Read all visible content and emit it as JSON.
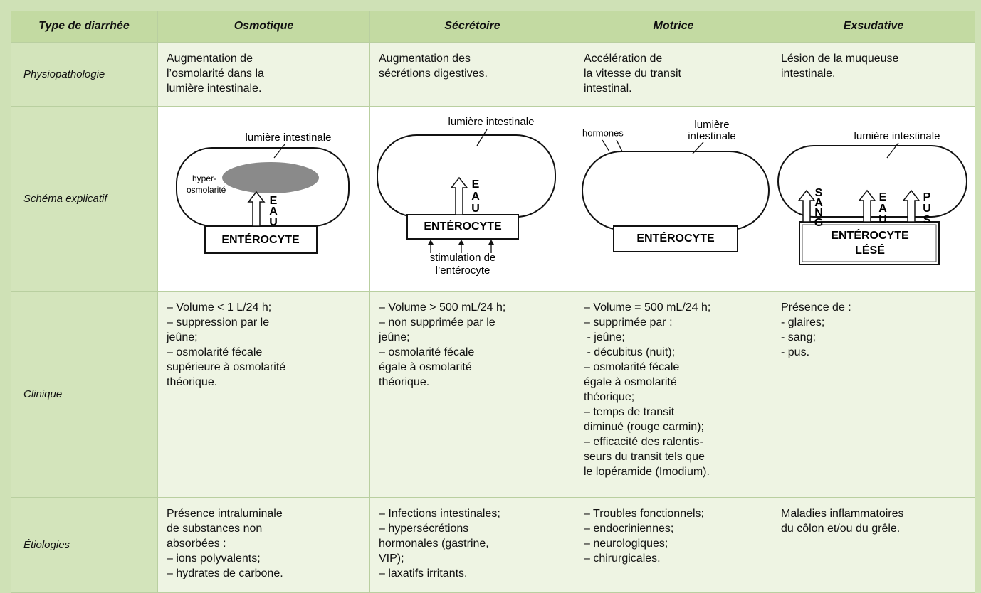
{
  "table": {
    "header": [
      "Type de diarrhée",
      "Osmotique",
      "Sécrétoire",
      "Motrice",
      "Exsudative"
    ],
    "rows": [
      {
        "label": "Physiopathologie",
        "cells": [
          [
            "Augmentation de",
            "l’osmolarité dans la",
            "lumière intestinale."
          ],
          [
            "Augmentation des",
            "sécrétions digestives."
          ],
          [
            "Accélération de",
            "la vitesse du transit",
            "intestinal."
          ],
          [
            "Lésion de la muqueuse",
            "intestinale."
          ]
        ]
      },
      {
        "label": "Schéma explicatif"
      },
      {
        "label": "Clinique",
        "cells": [
          [
            "– Volume < 1 L/24 h;",
            "– suppression par le",
            "jeûne;",
            "– osmolarité fécale",
            "supérieure à osmolarité",
            "théorique."
          ],
          [
            "– Volume > 500 mL/24 h;",
            "– non supprimée par le",
            "jeûne;",
            "– osmolarité fécale",
            "égale à osmolarité",
            "théorique."
          ],
          [
            "– Volume = 500 mL/24 h;",
            "– supprimée par :",
            " - jeûne;",
            " - décubitus (nuit);",
            "– osmolarité fécale",
            "égale à osmolarité",
            "théorique;",
            "– temps de transit",
            "diminué (rouge carmin);",
            "– efficacité des ralentis-",
            "seurs du transit tels que",
            "le lopéramide (Imodium)."
          ],
          [
            "Présence de :",
            "- glaires;",
            "- sang;",
            "- pus."
          ]
        ]
      },
      {
        "label": "Étiologies",
        "cells": [
          [
            "Présence intraluminale",
            "de substances non",
            "absorbées :",
            "– ions polyvalents;",
            "– hydrates de carbone."
          ],
          [
            "– Infections intestinales;",
            "– hypersécrétions",
            "hormonales (gastrine,",
            "VIP);",
            "– laxatifs irritants."
          ],
          [
            "– Troubles fonctionnels;",
            "– endocriniennes;",
            "– neurologiques;",
            "– chirurgicales."
          ],
          [
            "Maladies inflammatoires",
            "du côlon et/ou du grêle."
          ]
        ]
      }
    ]
  },
  "diagrams": [
    {
      "lumen": "lumière intestinale",
      "blob": [
        "hyper-",
        "osmolarité"
      ],
      "arrow": [
        "E",
        "A",
        "U"
      ],
      "cell": "ENTÉROCYTE"
    },
    {
      "lumen": "lumière intestinale",
      "arrow": [
        "E",
        "A",
        "U"
      ],
      "cell": "ENTÉROCYTE",
      "stimulus": [
        "stimulation de",
        "l’entérocyte"
      ]
    },
    {
      "hormones": "hormones",
      "lumen": [
        "lumière",
        "intestinale"
      ],
      "cell": "ENTÉROCYTE"
    },
    {
      "lumen": "lumière intestinale",
      "arrows": [
        [
          "S",
          "A",
          "N",
          "G"
        ],
        [
          "E",
          "A",
          "U"
        ],
        [
          "P",
          "U",
          "S"
        ]
      ],
      "cell": [
        "ENTÉROCYTE",
        "LÉSÉ"
      ]
    }
  ]
}
